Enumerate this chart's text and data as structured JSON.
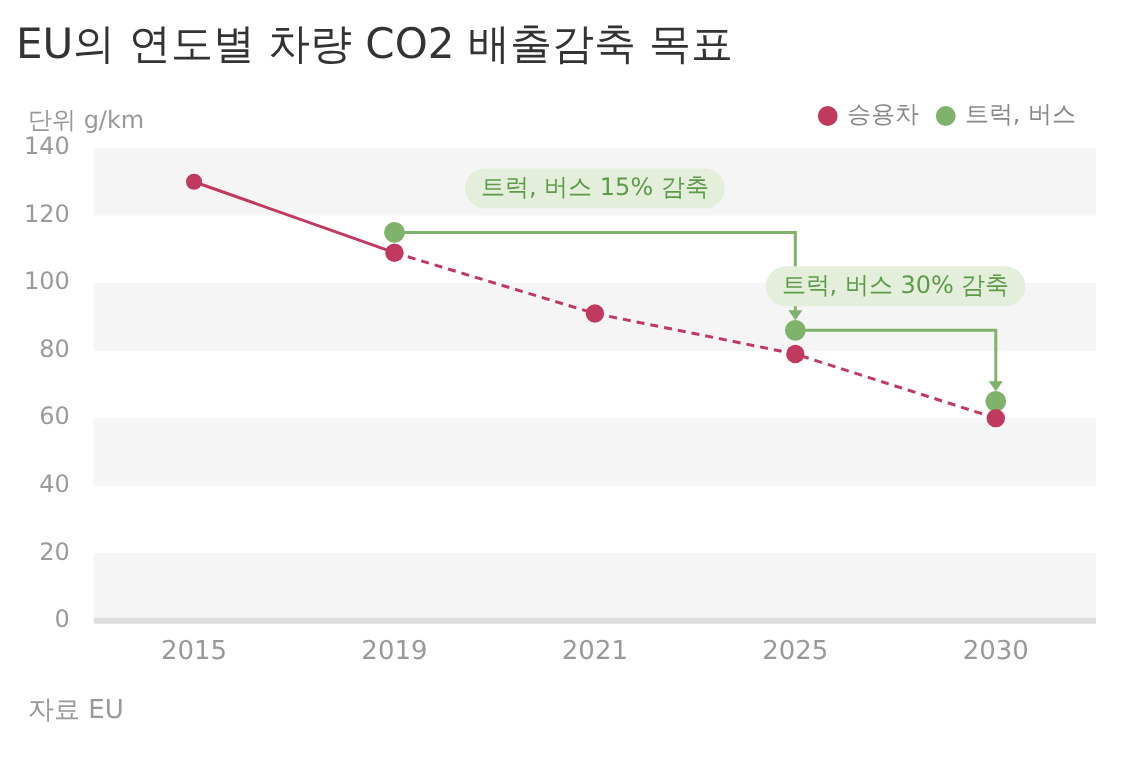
{
  "chart_data": {
    "type": "line",
    "title": "EU의 연도별 차량 CO2 배출감축 목표",
    "subtitle": "단위 g/km",
    "categories": [
      "2015",
      "2019",
      "2021",
      "2025",
      "2030"
    ],
    "series": [
      {
        "name": "승용차",
        "color": "#c0395e",
        "values": [
          130,
          109,
          null,
          null,
          null
        ],
        "line_style": "solid"
      },
      {
        "color": "#c0395e",
        "values": [
          null,
          109,
          91,
          79,
          60
        ],
        "line_style": "dashed"
      },
      {
        "name": "트럭, 버스",
        "type": "scatter",
        "color": "#7fb26a",
        "values": [
          null,
          115,
          null,
          86,
          65
        ]
      }
    ],
    "ylim": [
      0,
      140
    ],
    "yticks": [
      0,
      20,
      40,
      60,
      80,
      100,
      120,
      140
    ],
    "bands": [
      {
        "axis": "y",
        "from": 120,
        "to": 140,
        "color": "#f5f5f5"
      },
      {
        "axis": "y",
        "from": 80,
        "to": 100,
        "color": "#f5f5f5"
      },
      {
        "axis": "y",
        "from": 40,
        "to": 60,
        "color": "#f5f5f5"
      },
      {
        "axis": "y",
        "from": 0,
        "to": 20,
        "color": "#f5f5f5"
      }
    ],
    "legend": "top right",
    "marker": "circle",
    "annotations": [
      "트럭, 버스 15% 감축",
      "트럭, 버스 30% 감축",
      "자료 EU"
    ]
  }
}
